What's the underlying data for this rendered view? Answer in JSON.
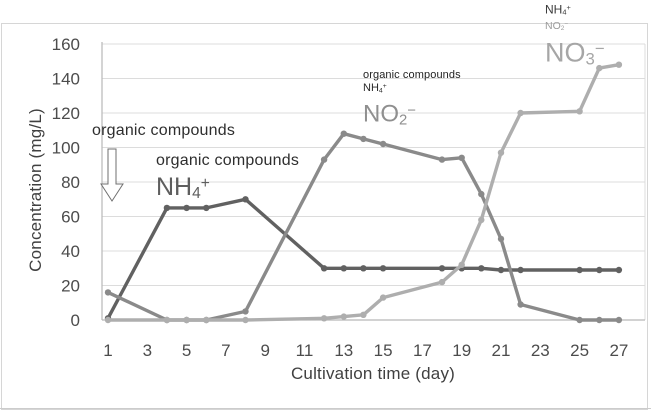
{
  "chart_data": {
    "type": "line",
    "title": "",
    "xlabel": "Cultivation time (day)",
    "ylabel": "Concentration (mg/L)",
    "x": [
      1,
      4,
      5,
      6,
      8,
      12,
      13,
      14,
      15,
      18,
      19,
      20,
      21,
      22,
      25,
      26,
      27
    ],
    "series": [
      {
        "name": "organic compounds + NH4+ (dark gray)",
        "color": "#616161",
        "values": [
          1,
          65,
          65,
          65,
          70,
          30,
          30,
          30,
          30,
          30,
          30,
          30,
          29,
          29,
          29,
          29,
          29
        ]
      },
      {
        "name": "NO2- (medium gray)",
        "color": "#8a8a8a",
        "values": [
          16,
          0,
          0,
          0,
          5,
          93,
          108,
          105,
          102,
          93,
          94,
          73,
          47,
          9,
          0,
          0,
          0
        ]
      },
      {
        "name": "NO3- (light gray)",
        "color": "#aeaeae",
        "values": [
          0,
          0,
          0,
          0,
          0,
          1,
          2,
          3,
          13,
          22,
          32,
          58,
          97,
          120,
          121,
          146,
          148
        ]
      }
    ],
    "xticks": [
      1,
      3,
      5,
      7,
      9,
      11,
      13,
      15,
      17,
      19,
      21,
      23,
      25,
      27
    ],
    "yticks": [
      0,
      20,
      40,
      60,
      80,
      100,
      120,
      140,
      160
    ],
    "xlim": [
      0.7,
      28.3
    ],
    "ylim": [
      0,
      160
    ],
    "grid": true,
    "legend": "none (curves labeled by inline annotations)"
  },
  "annotations": {
    "addition_note": {
      "text": "organic compounds"
    },
    "nh4_curve": {
      "note": "organic compounds",
      "formula": {
        "base": "NH",
        "sub": "4",
        "sup": "+"
      }
    },
    "no2_curve": {
      "note": "organic compounds",
      "note_formula": {
        "base": "NH",
        "sub": "4",
        "sup": "+"
      },
      "formula": {
        "base": "NO",
        "sub": "2",
        "sup": "−"
      }
    },
    "no3_curve": {
      "note_formula_1": {
        "base": "NH",
        "sub": "4",
        "sup": "+"
      },
      "note_formula_2": {
        "base": "NO",
        "sub": "2",
        "sup": "−"
      },
      "formula": {
        "base": "NO",
        "sub": "3",
        "sup": "−"
      }
    }
  }
}
